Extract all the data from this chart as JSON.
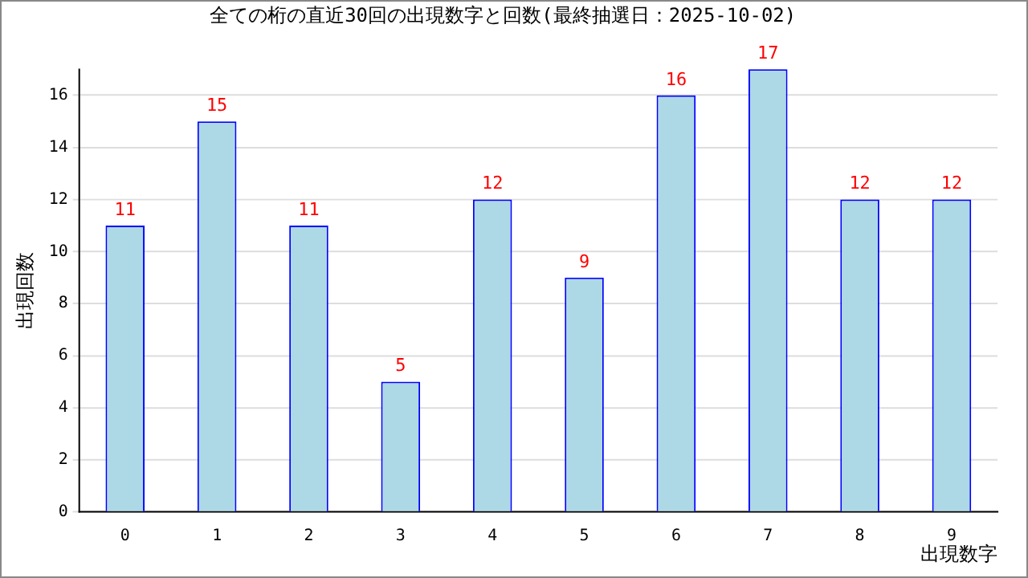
{
  "chart_data": {
    "type": "bar",
    "title": "全ての桁の直近30回の出現数字と回数(最終抽選日：2025-10-02)",
    "xlabel": "出現数字",
    "ylabel": "出現回数",
    "categories": [
      "0",
      "1",
      "2",
      "3",
      "4",
      "5",
      "6",
      "7",
      "8",
      "9"
    ],
    "series": [
      {
        "color": "#add8e6",
        "values": [
          11,
          15,
          11,
          5,
          12,
          9,
          16,
          17,
          12,
          12
        ]
      }
    ],
    "ylim": [
      0,
      17
    ],
    "yticks": [
      0,
      2,
      4,
      6,
      8,
      10,
      12,
      14,
      16
    ],
    "grid": "y",
    "legend": false,
    "data_labels": true
  }
}
